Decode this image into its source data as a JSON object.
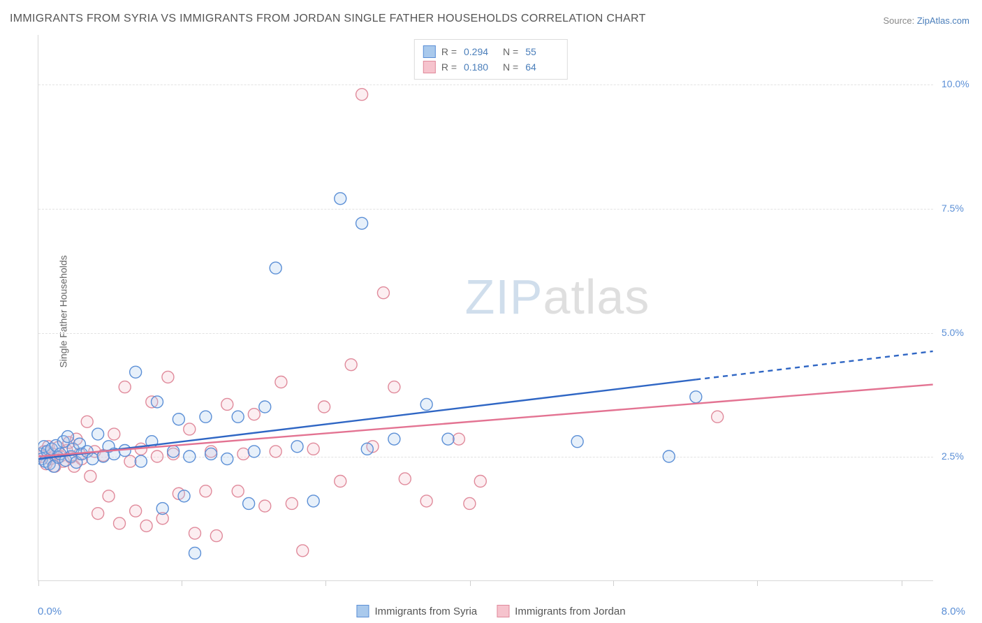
{
  "title": "IMMIGRANTS FROM SYRIA VS IMMIGRANTS FROM JORDAN SINGLE FATHER HOUSEHOLDS CORRELATION CHART",
  "source_prefix": "Source: ",
  "source_link": "ZipAtlas.com",
  "ylabel": "Single Father Households",
  "watermark_a": "ZIP",
  "watermark_b": "atlas",
  "chart": {
    "type": "scatter-with-trend",
    "background_color": "#ffffff",
    "grid_color": "#e2e2e2",
    "axis_color": "#d8d8d8",
    "xlim": [
      0,
      8.3
    ],
    "ylim": [
      0,
      11.0
    ],
    "marker_radius": 8.5,
    "xtick_positions": [
      0,
      1.33,
      2.66,
      4.0,
      5.33,
      6.66,
      8.0
    ],
    "ytick_values": [
      2.5,
      5.0,
      7.5,
      10.0
    ],
    "ytick_labels": [
      "2.5%",
      "5.0%",
      "7.5%",
      "10.0%"
    ],
    "xaxis_min_label": "0.0%",
    "xaxis_max_label": "8.0%",
    "series": {
      "syria": {
        "label": "Immigrants from Syria",
        "R": "0.294",
        "N": "55",
        "fill": "#a9c9ec",
        "stroke": "#5b8fd6",
        "trend_color": "#2f66c4",
        "trend_y0": 2.45,
        "trend_y1_at_x": 6.1,
        "trend_y1": 4.05,
        "trend_dash_to_x": 8.3,
        "trend_dash_to_y": 4.62,
        "points": [
          [
            0.02,
            2.55
          ],
          [
            0.03,
            2.45
          ],
          [
            0.05,
            2.7
          ],
          [
            0.06,
            2.4
          ],
          [
            0.08,
            2.6
          ],
          [
            0.1,
            2.35
          ],
          [
            0.12,
            2.65
          ],
          [
            0.14,
            2.3
          ],
          [
            0.16,
            2.72
          ],
          [
            0.18,
            2.48
          ],
          [
            0.2,
            2.55
          ],
          [
            0.23,
            2.8
          ],
          [
            0.25,
            2.42
          ],
          [
            0.27,
            2.9
          ],
          [
            0.3,
            2.5
          ],
          [
            0.32,
            2.65
          ],
          [
            0.35,
            2.38
          ],
          [
            0.38,
            2.75
          ],
          [
            0.4,
            2.55
          ],
          [
            0.45,
            2.6
          ],
          [
            0.5,
            2.45
          ],
          [
            0.55,
            2.95
          ],
          [
            0.6,
            2.5
          ],
          [
            0.65,
            2.7
          ],
          [
            0.7,
            2.55
          ],
          [
            0.8,
            2.62
          ],
          [
            0.9,
            4.2
          ],
          [
            0.95,
            2.4
          ],
          [
            1.05,
            2.8
          ],
          [
            1.1,
            3.6
          ],
          [
            1.15,
            1.45
          ],
          [
            1.25,
            2.6
          ],
          [
            1.3,
            3.25
          ],
          [
            1.35,
            1.7
          ],
          [
            1.4,
            2.5
          ],
          [
            1.45,
            0.55
          ],
          [
            1.55,
            3.3
          ],
          [
            1.6,
            2.55
          ],
          [
            1.75,
            2.45
          ],
          [
            1.85,
            3.3
          ],
          [
            1.95,
            1.55
          ],
          [
            2.0,
            2.6
          ],
          [
            2.1,
            3.5
          ],
          [
            2.2,
            6.3
          ],
          [
            2.4,
            2.7
          ],
          [
            2.55,
            1.6
          ],
          [
            2.8,
            7.7
          ],
          [
            3.0,
            7.2
          ],
          [
            3.05,
            2.65
          ],
          [
            3.6,
            3.55
          ],
          [
            3.8,
            2.85
          ],
          [
            5.0,
            2.8
          ],
          [
            5.85,
            2.5
          ],
          [
            6.1,
            3.7
          ],
          [
            3.3,
            2.85
          ]
        ]
      },
      "jordan": {
        "label": "Immigrants from Jordan",
        "R": "0.180",
        "N": "64",
        "fill": "#f6c3cd",
        "stroke": "#e08a9b",
        "trend_color": "#e37392",
        "trend_y0": 2.5,
        "trend_y1_at_x": 8.3,
        "trend_y1": 3.95,
        "points": [
          [
            0.03,
            2.5
          ],
          [
            0.05,
            2.6
          ],
          [
            0.07,
            2.35
          ],
          [
            0.09,
            2.7
          ],
          [
            0.11,
            2.45
          ],
          [
            0.13,
            2.55
          ],
          [
            0.15,
            2.3
          ],
          [
            0.18,
            2.68
          ],
          [
            0.2,
            2.5
          ],
          [
            0.23,
            2.4
          ],
          [
            0.26,
            2.62
          ],
          [
            0.28,
            2.78
          ],
          [
            0.3,
            2.48
          ],
          [
            0.33,
            2.3
          ],
          [
            0.35,
            2.85
          ],
          [
            0.38,
            2.55
          ],
          [
            0.4,
            2.45
          ],
          [
            0.45,
            3.2
          ],
          [
            0.48,
            2.1
          ],
          [
            0.52,
            2.6
          ],
          [
            0.55,
            1.35
          ],
          [
            0.6,
            2.52
          ],
          [
            0.65,
            1.7
          ],
          [
            0.7,
            2.95
          ],
          [
            0.75,
            1.15
          ],
          [
            0.8,
            3.9
          ],
          [
            0.85,
            2.4
          ],
          [
            0.9,
            1.4
          ],
          [
            0.95,
            2.65
          ],
          [
            1.0,
            1.1
          ],
          [
            1.05,
            3.6
          ],
          [
            1.1,
            2.5
          ],
          [
            1.15,
            1.25
          ],
          [
            1.2,
            4.1
          ],
          [
            1.25,
            2.55
          ],
          [
            1.3,
            1.75
          ],
          [
            1.4,
            3.05
          ],
          [
            1.45,
            0.95
          ],
          [
            1.55,
            1.8
          ],
          [
            1.6,
            2.6
          ],
          [
            1.65,
            0.9
          ],
          [
            1.75,
            3.55
          ],
          [
            1.85,
            1.8
          ],
          [
            1.9,
            2.55
          ],
          [
            2.0,
            3.35
          ],
          [
            2.1,
            1.5
          ],
          [
            2.2,
            2.6
          ],
          [
            2.25,
            4.0
          ],
          [
            2.35,
            1.55
          ],
          [
            2.45,
            0.6
          ],
          [
            2.55,
            2.65
          ],
          [
            2.65,
            3.5
          ],
          [
            2.8,
            2.0
          ],
          [
            2.9,
            4.35
          ],
          [
            3.0,
            9.8
          ],
          [
            3.1,
            2.7
          ],
          [
            3.2,
            5.8
          ],
          [
            3.3,
            3.9
          ],
          [
            3.4,
            2.05
          ],
          [
            3.6,
            1.6
          ],
          [
            3.9,
            2.85
          ],
          [
            4.0,
            1.55
          ],
          [
            4.1,
            2.0
          ],
          [
            6.3,
            3.3
          ]
        ]
      }
    }
  },
  "legend_top": {
    "R_label": "R =",
    "N_label": "N ="
  }
}
